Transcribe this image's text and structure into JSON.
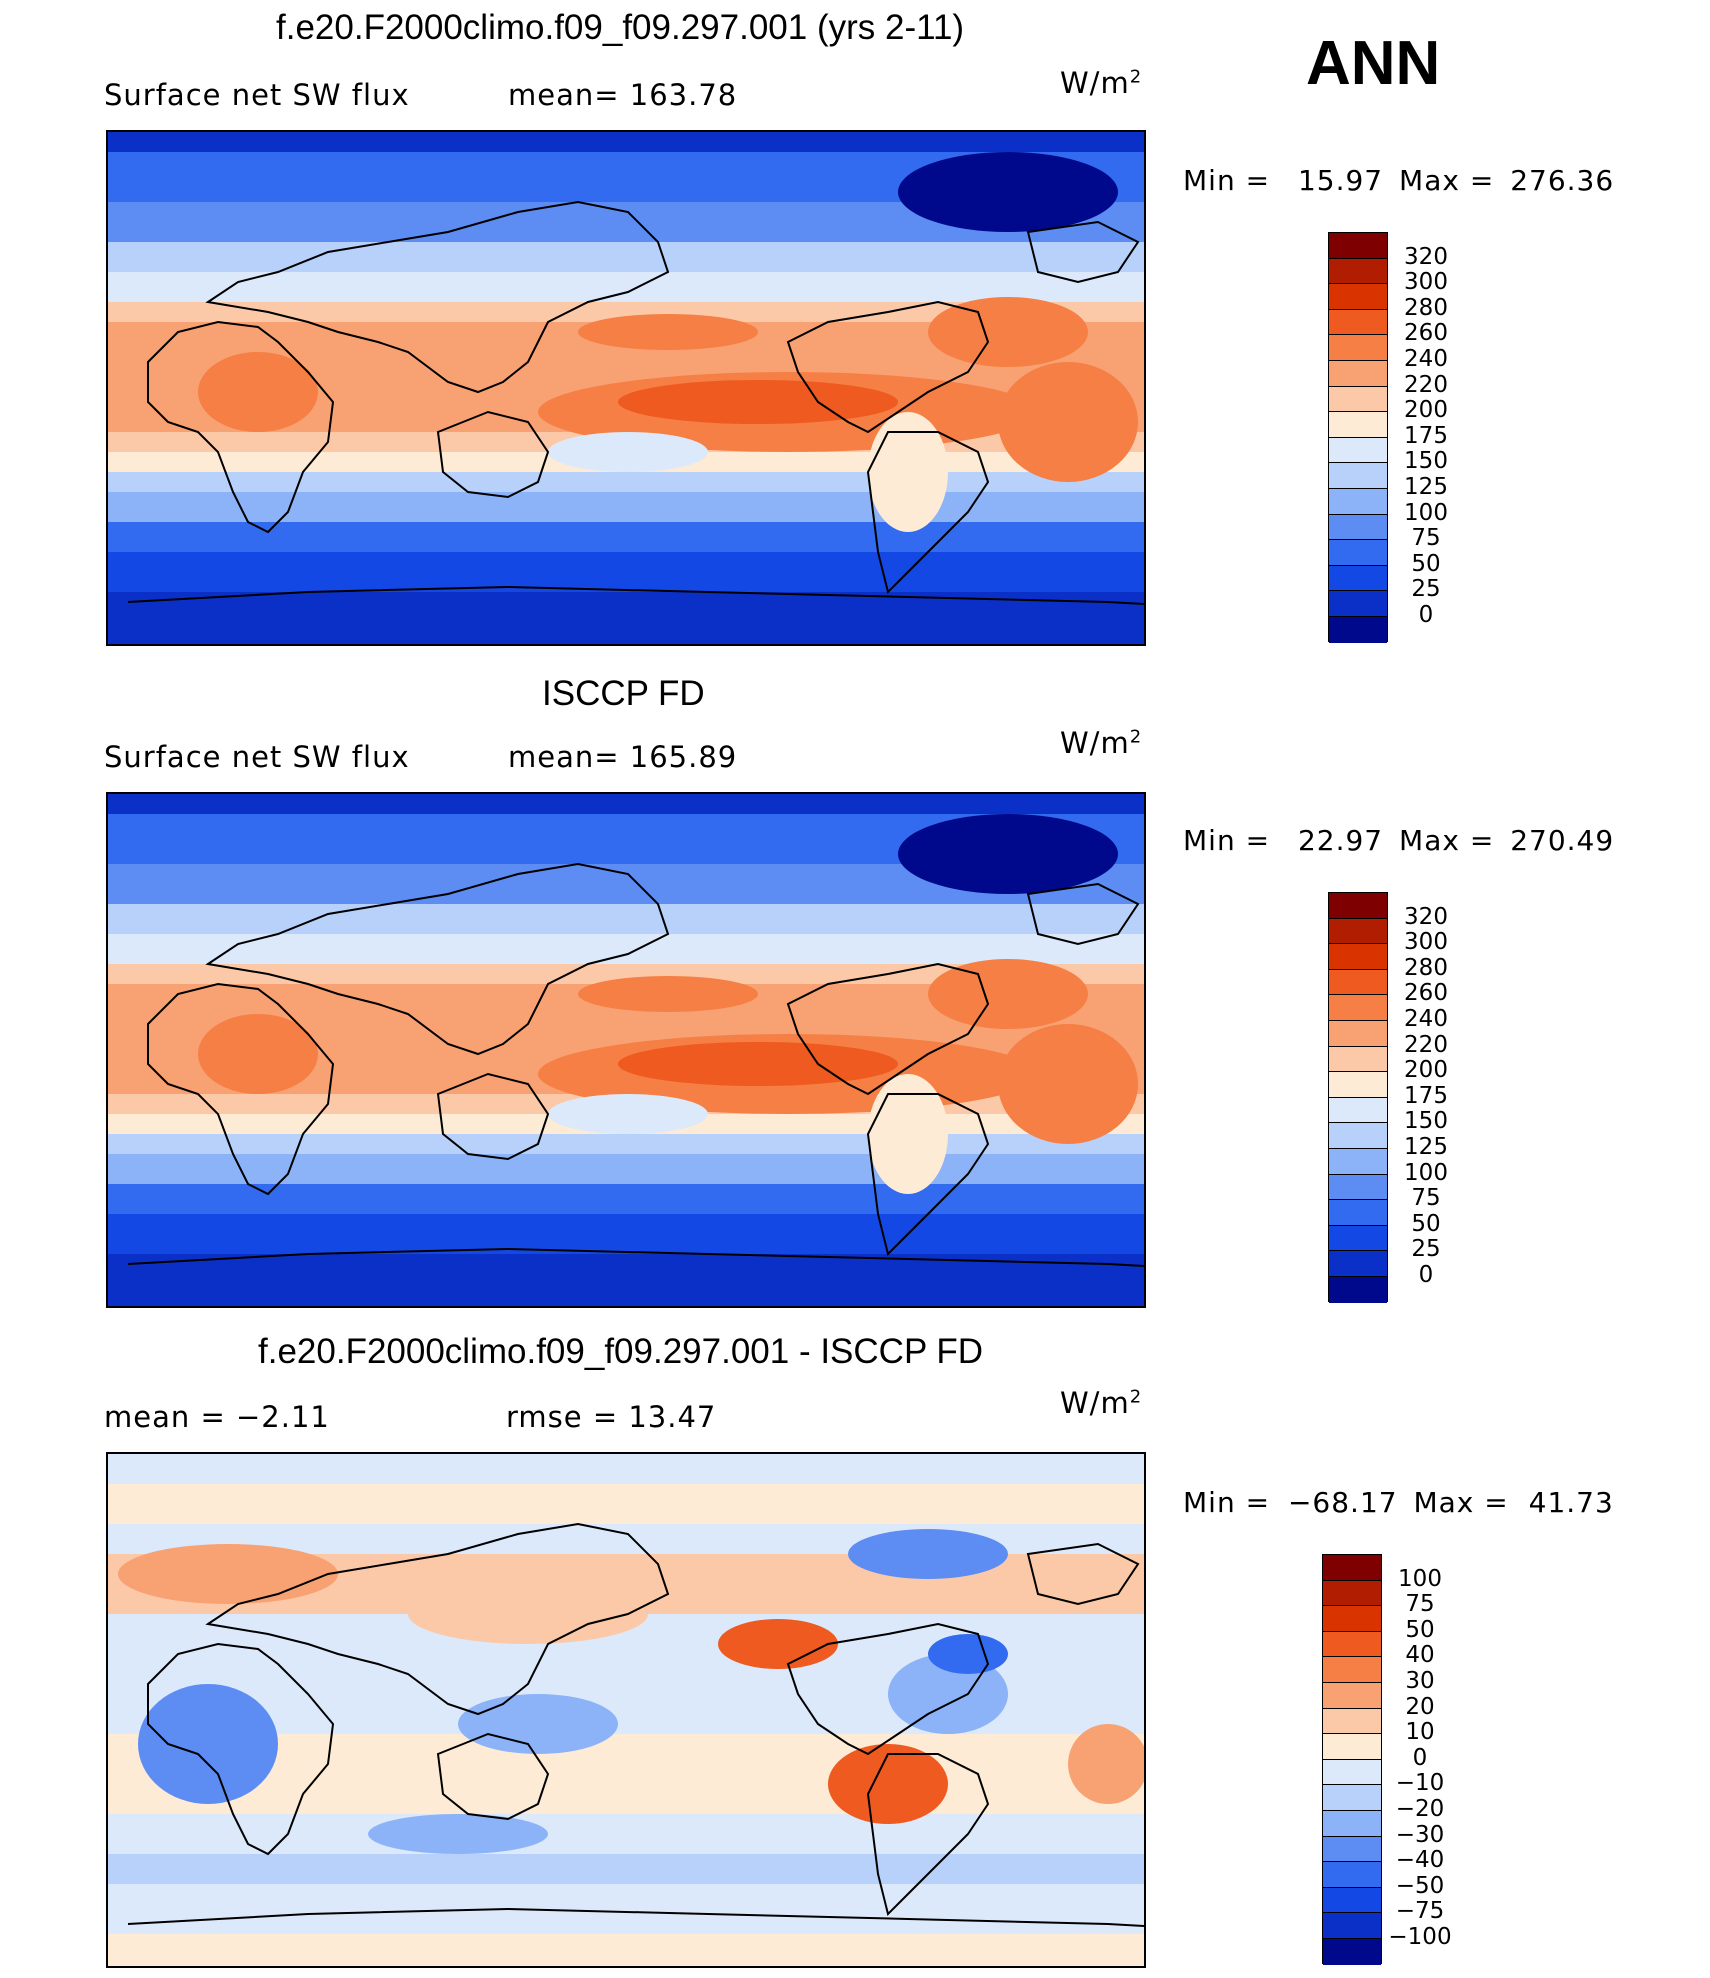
{
  "season": "ANN",
  "panels": [
    {
      "title": "f.e20.F2000climo.f09_f09.297.001 (yrs 2-11)",
      "left_text": "Surface net SW flux",
      "middle_text": "mean= 163.78",
      "units": "W/m",
      "units_sup": "2",
      "min_label": "Min =",
      "min_value": "15.97",
      "max_label": "Max =",
      "max_value": "276.36",
      "colorbar": {
        "labels": [
          "320",
          "300",
          "280",
          "260",
          "240",
          "220",
          "200",
          "175",
          "150",
          "125",
          "100",
          "75",
          "50",
          "25",
          "0"
        ],
        "colors": [
          "#7f0000",
          "#b01d00",
          "#d93300",
          "#ee5a1f",
          "#f57f44",
          "#f8a172",
          "#fcc9a8",
          "#fdebd6",
          "#dbe9fb",
          "#b7d1fb",
          "#8cb2f8",
          "#5d8df2",
          "#326bef",
          "#1448e4",
          "#0a30c8",
          "#00088b"
        ]
      },
      "map_type": "sw"
    },
    {
      "title": "ISCCP FD",
      "left_text": "Surface net SW flux",
      "middle_text": "mean= 165.89",
      "units": "W/m",
      "units_sup": "2",
      "min_label": "Min =",
      "min_value": "22.97",
      "max_label": "Max =",
      "max_value": "270.49",
      "colorbar": {
        "labels": [
          "320",
          "300",
          "280",
          "260",
          "240",
          "220",
          "200",
          "175",
          "150",
          "125",
          "100",
          "75",
          "50",
          "25",
          "0"
        ],
        "colors": [
          "#7f0000",
          "#b01d00",
          "#d93300",
          "#ee5a1f",
          "#f57f44",
          "#f8a172",
          "#fcc9a8",
          "#fdebd6",
          "#dbe9fb",
          "#b7d1fb",
          "#8cb2f8",
          "#5d8df2",
          "#326bef",
          "#1448e4",
          "#0a30c8",
          "#00088b"
        ]
      },
      "map_type": "sw"
    },
    {
      "title": "f.e20.F2000climo.f09_f09.297.001 - ISCCP FD",
      "left_text": "mean =   −2.11",
      "middle_text": "rmse =   13.47",
      "units": "W/m",
      "units_sup": "2",
      "min_label": "Min =",
      "min_value": "−68.17",
      "max_label": "Max =",
      "max_value": "41.73",
      "colorbar": {
        "labels": [
          "100",
          "75",
          "50",
          "40",
          "30",
          "20",
          "10",
          "0",
          "−10",
          "−20",
          "−30",
          "−40",
          "−50",
          "−75",
          "−100"
        ],
        "colors": [
          "#7f0000",
          "#b01d00",
          "#d93300",
          "#ee5a1f",
          "#f57f44",
          "#f8a172",
          "#fcc9a8",
          "#fdebd6",
          "#dbe9fb",
          "#b7d1fb",
          "#8cb2f8",
          "#5d8df2",
          "#326bef",
          "#1448e4",
          "#0a30c8",
          "#00088b"
        ]
      },
      "map_type": "diff"
    }
  ],
  "chart_data": [
    {
      "type": "heatmap",
      "title": "f.e20.F2000climo.f09_f09.297.001 (yrs 2-11)",
      "variable": "Surface net SW flux",
      "units": "W/m2",
      "mean": 163.78,
      "min": 15.97,
      "max": 276.36,
      "contour_levels": [
        0,
        25,
        50,
        75,
        100,
        125,
        150,
        175,
        200,
        220,
        240,
        260,
        280,
        300,
        320
      ]
    },
    {
      "type": "heatmap",
      "title": "ISCCP FD",
      "variable": "Surface net SW flux",
      "units": "W/m2",
      "mean": 165.89,
      "min": 22.97,
      "max": 270.49,
      "contour_levels": [
        0,
        25,
        50,
        75,
        100,
        125,
        150,
        175,
        200,
        220,
        240,
        260,
        280,
        300,
        320
      ]
    },
    {
      "type": "heatmap",
      "title": "f.e20.F2000climo.f09_f09.297.001 - ISCCP FD",
      "units": "W/m2",
      "mean": -2.11,
      "rmse": 13.47,
      "min": -68.17,
      "max": 41.73,
      "contour_levels": [
        -100,
        -75,
        -50,
        -40,
        -30,
        -20,
        -10,
        0,
        10,
        20,
        30,
        40,
        50,
        75,
        100
      ]
    }
  ]
}
